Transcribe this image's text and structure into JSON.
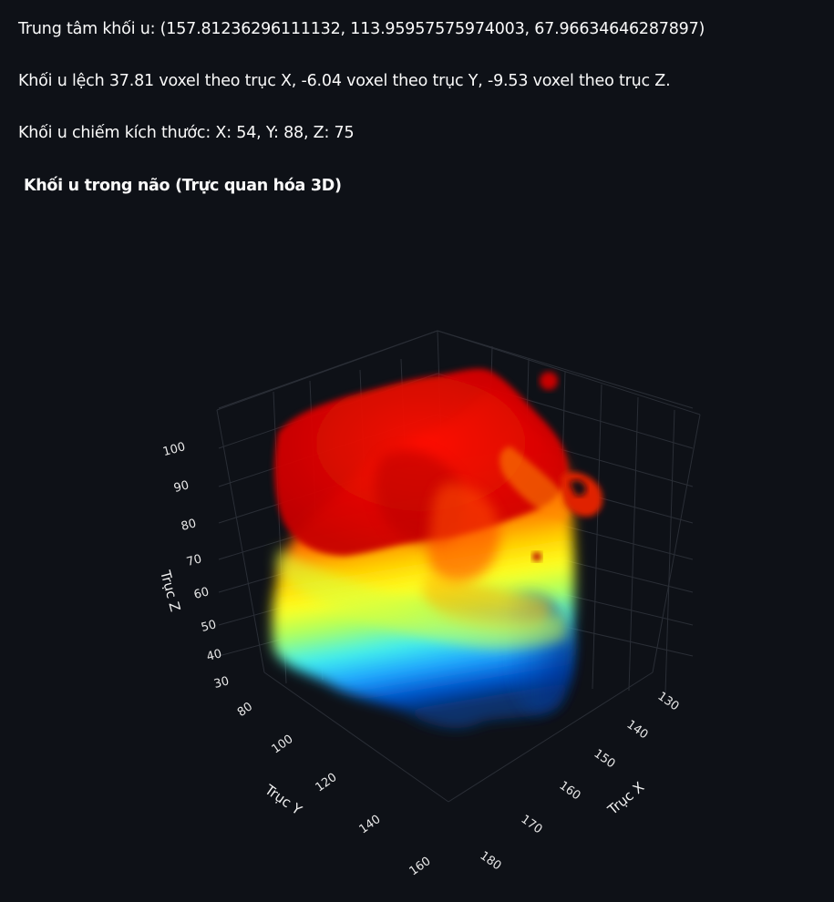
{
  "info": {
    "center_line": "Trung tâm khối u: (157.81236296111132, 113.95957575974003, 67.96634646287897)",
    "offset_line": "Khối u lệch 37.81 voxel theo trục X, -6.04 voxel theo trục Y, -9.53 voxel theo trục Z.",
    "size_line": "Khối u chiếm kích thước: X: 54, Y: 88, Z: 75"
  },
  "section": {
    "title": "Khối u trong não (Trực quan hóa 3D)"
  },
  "plot": {
    "colors": {
      "background": "#0e1117",
      "grid": "#2a2e36",
      "colorscale": [
        "#08306b",
        "#0050c8",
        "#1ea0ff",
        "#3ef0f0",
        "#a0ff60",
        "#ffff00",
        "#ffb000",
        "#ff5a00",
        "#ff1a00",
        "#d80000"
      ]
    },
    "z_axis": {
      "title": "Trục Z",
      "ticks": [
        "100",
        "90",
        "80",
        "70",
        "60",
        "50",
        "40",
        "30"
      ]
    },
    "y_axis": {
      "title": "Trục Y",
      "ticks": [
        "80",
        "100",
        "120",
        "140",
        "160"
      ]
    },
    "x_axis": {
      "title": "Trục X",
      "ticks": [
        "130",
        "140",
        "150",
        "160",
        "170",
        "180"
      ]
    }
  },
  "chart_data": {
    "type": "scatter3d",
    "title": "Khối u trong não (Trực quan hóa 3D)",
    "xlabel": "Trục X",
    "ylabel": "Trục Y",
    "zlabel": "Trục Z",
    "x_ticks": [
      130,
      140,
      150,
      160,
      170,
      180
    ],
    "y_ticks": [
      80,
      100,
      120,
      140,
      160
    ],
    "z_ticks": [
      30,
      40,
      50,
      60,
      70,
      80,
      90,
      100
    ],
    "center": [
      157.81236296111132,
      113.95957575974003,
      67.96634646287897
    ],
    "extent": {
      "x": 54,
      "y": 88,
      "z": 75
    },
    "colorscale": "jet (mapped to z)",
    "grid": true
  }
}
